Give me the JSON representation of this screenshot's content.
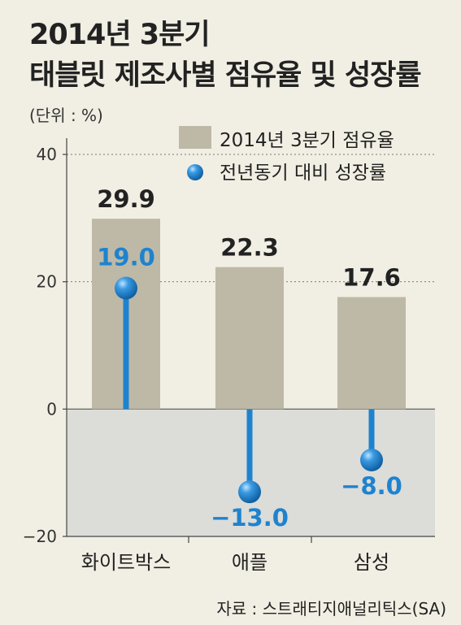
{
  "title_line1": "2014년 3분기",
  "title_line2": "태블릿 제조사별 점유율 및 성장률",
  "unit": "(단위 : %)",
  "source": "자료 : 스트래티지애널리틱스(SA)",
  "colors": {
    "background": "#f1efe3",
    "negative_area": "#dcdcd8",
    "bar": "#bdb9a6",
    "growth": "#1e83cf"
  },
  "chart_data": {
    "type": "bar",
    "categories": [
      "화이트박스",
      "애플",
      "삼성"
    ],
    "series": [
      {
        "name": "2014년 3분기 점유율",
        "values": [
          29.9,
          22.3,
          17.6
        ],
        "value_labels": [
          "29.9",
          "22.3",
          "17.6"
        ]
      },
      {
        "name": "전년동기 대비 성장률",
        "values": [
          19.0,
          -13.0,
          -8.0
        ],
        "value_labels": [
          "19.0",
          "−13.0",
          "−8.0"
        ]
      }
    ],
    "ylim": [
      -20,
      40
    ],
    "yticks": [
      40,
      20,
      0,
      -20
    ],
    "ytick_labels": [
      "40",
      "20",
      "0",
      "−20"
    ],
    "legend": "top-right",
    "grid": true
  }
}
